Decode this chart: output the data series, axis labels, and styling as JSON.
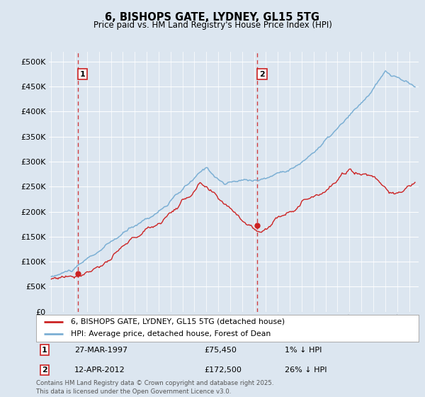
{
  "title": "6, BISHOPS GATE, LYDNEY, GL15 5TG",
  "subtitle": "Price paid vs. HM Land Registry's House Price Index (HPI)",
  "ylim": [
    0,
    520000
  ],
  "yticks": [
    0,
    50000,
    100000,
    150000,
    200000,
    250000,
    300000,
    350000,
    400000,
    450000,
    500000
  ],
  "ytick_labels": [
    "£0",
    "£50K",
    "£100K",
    "£150K",
    "£200K",
    "£250K",
    "£300K",
    "£350K",
    "£400K",
    "£450K",
    "£500K"
  ],
  "bg_color": "#dce6f0",
  "plot_bg_color": "#dce6f0",
  "grid_color": "#ffffff",
  "line_color_hpi": "#7bafd4",
  "line_color_price": "#cc2222",
  "marker1_x": 1997.23,
  "marker1_y": 75450,
  "marker2_x": 2012.28,
  "marker2_y": 172500,
  "annotation1_date": "27-MAR-1997",
  "annotation1_price": "£75,450",
  "annotation1_hpi": "1% ↓ HPI",
  "annotation2_date": "12-APR-2012",
  "annotation2_price": "£172,500",
  "annotation2_hpi": "26% ↓ HPI",
  "legend_label1": "6, BISHOPS GATE, LYDNEY, GL15 5TG (detached house)",
  "legend_label2": "HPI: Average price, detached house, Forest of Dean",
  "footer": "Contains HM Land Registry data © Crown copyright and database right 2025.\nThis data is licensed under the Open Government Licence v3.0.",
  "xmin": 1994.8,
  "xmax": 2025.8
}
